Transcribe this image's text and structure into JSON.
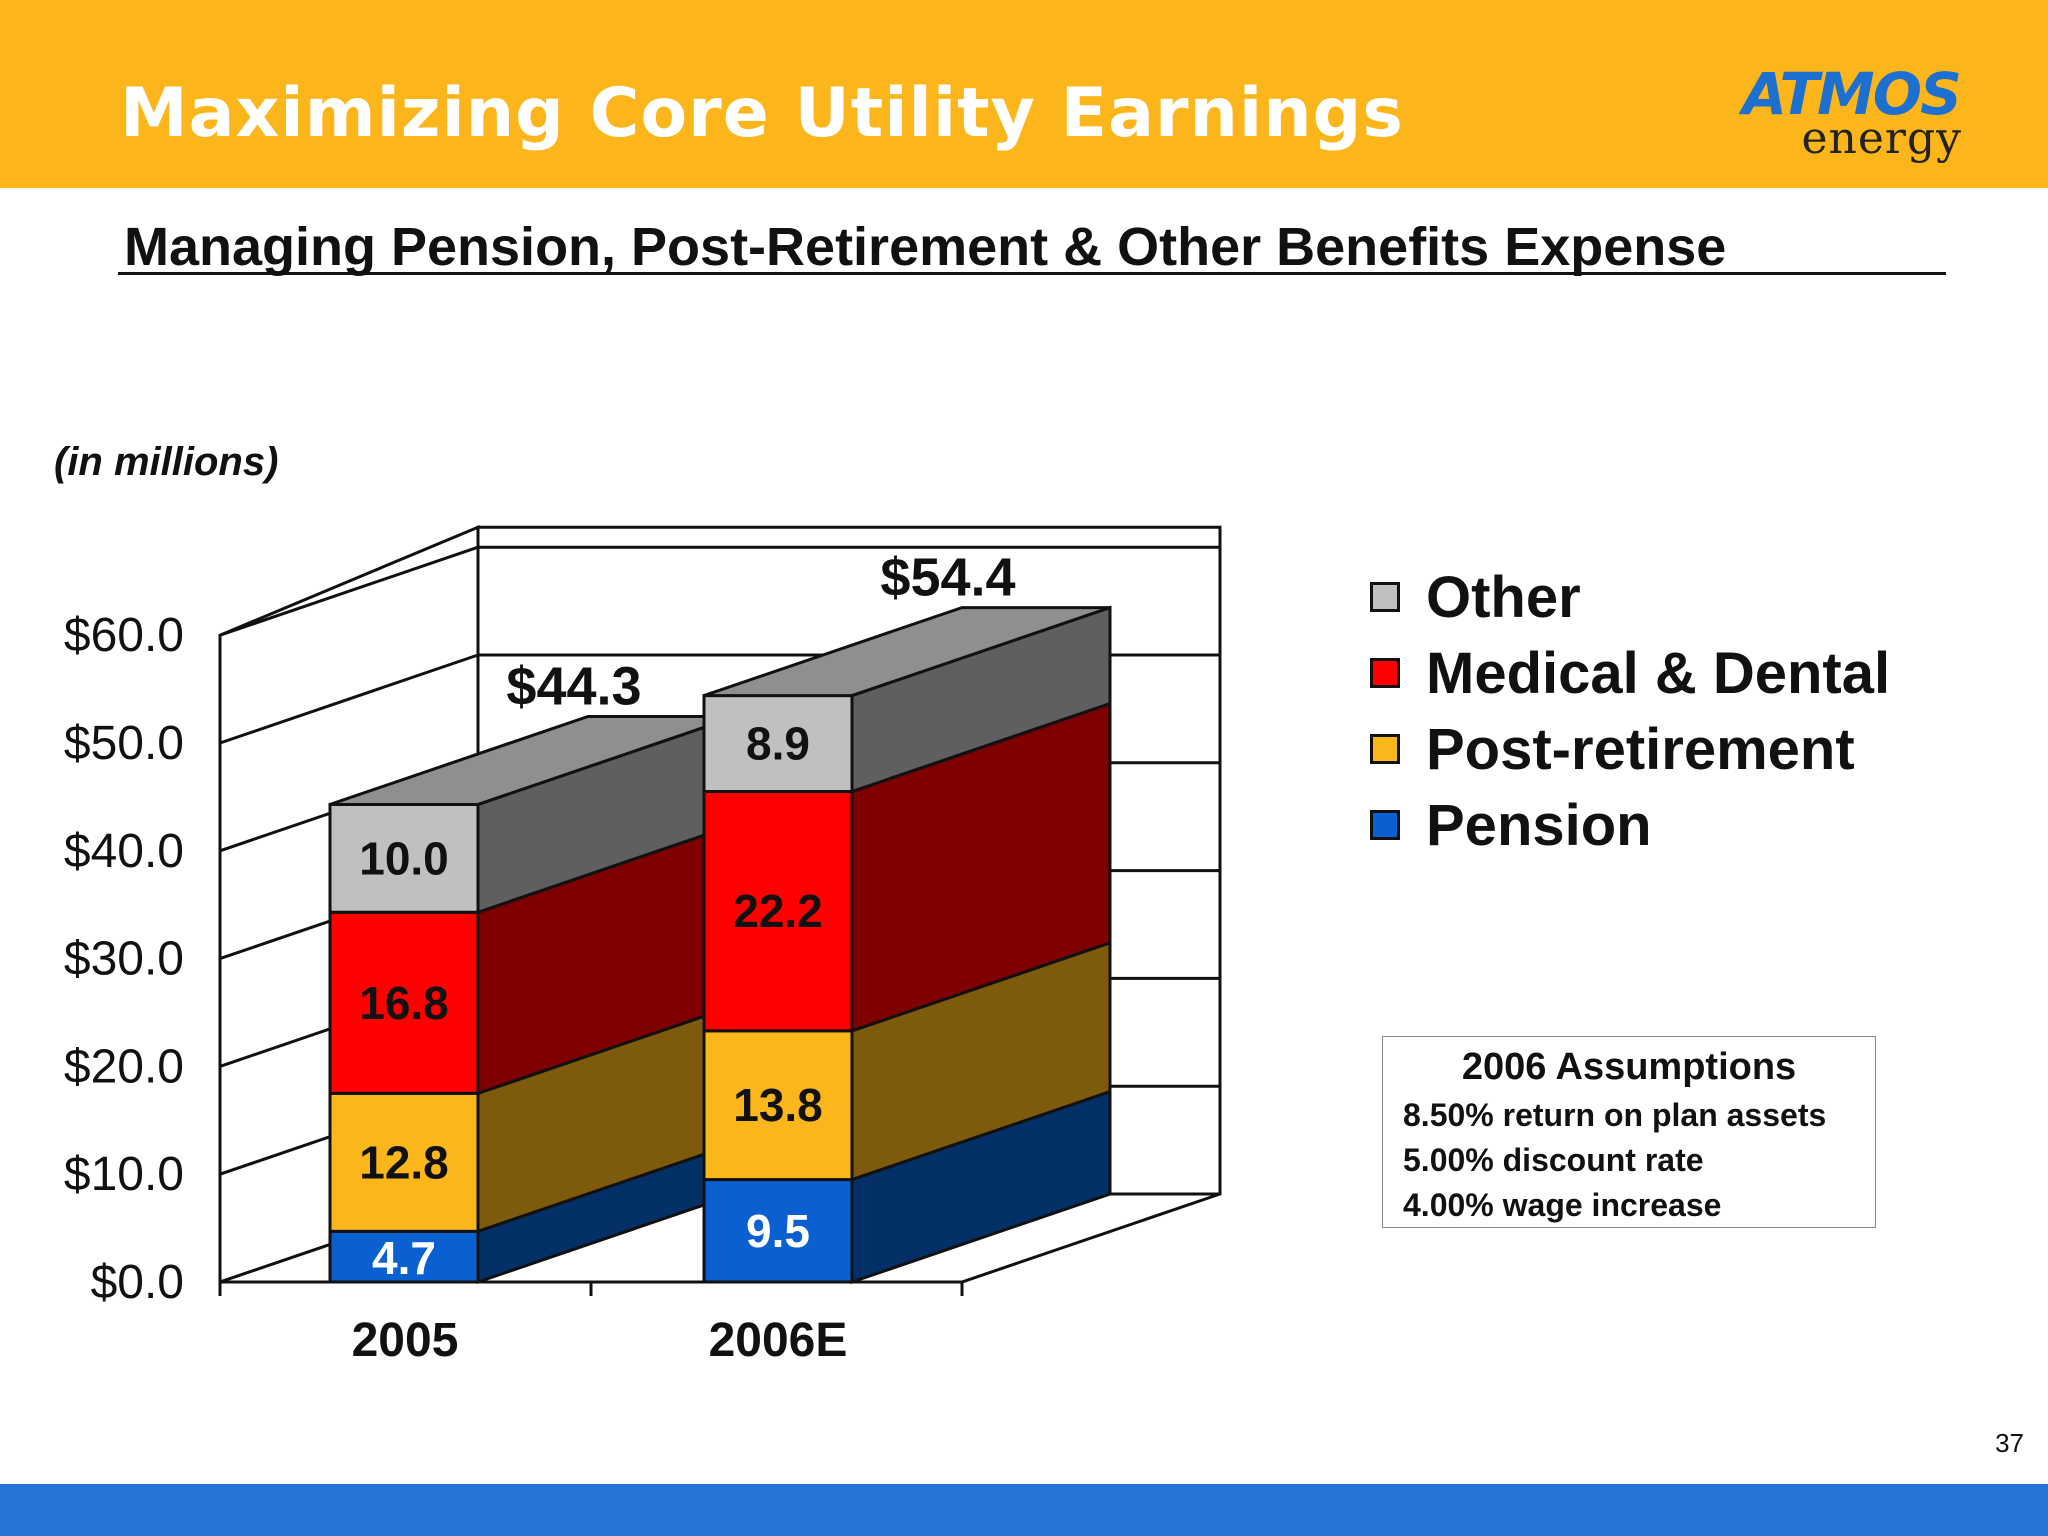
{
  "slide": {
    "title": "Maximizing Core Utility Earnings",
    "subtitle": "Managing Pension, Post-Retirement & Other Benefits Expense",
    "units_note": "(in millions)",
    "page_number": "37",
    "logo": {
      "main": "ATMOS",
      "sub": "energy"
    }
  },
  "colors": {
    "header": "#fcb61b",
    "footer": "#2674d6",
    "pension": "#0a5fd1",
    "post_retirement": "#fbb61b",
    "medical_dental": "#fe0000",
    "other": "#c0bfc2"
  },
  "chart_data": {
    "type": "bar",
    "stacked": true,
    "three_d": true,
    "categories": [
      "2005",
      "2006E"
    ],
    "series": [
      {
        "name": "Pension",
        "values": [
          4.7,
          9.5
        ],
        "labels": [
          "4.7",
          "9.5"
        ],
        "color": "#0a5fd1",
        "side_color": "#033066",
        "label_color": "#ffffff"
      },
      {
        "name": "Post-retirement",
        "values": [
          12.8,
          13.8
        ],
        "labels": [
          "12.8",
          "13.8"
        ],
        "color": "#fbb61b",
        "side_color": "#7e5a0c",
        "label_color": "#111111"
      },
      {
        "name": "Medical & Dental",
        "values": [
          16.8,
          22.2
        ],
        "labels": [
          "16.8",
          "22.2"
        ],
        "color": "#fe0000",
        "side_color": "#7f0000",
        "label_color": "#111111"
      },
      {
        "name": "Other",
        "values": [
          10.0,
          8.9
        ],
        "labels": [
          "10.0",
          "8.9"
        ],
        "color": "#c0bfc2",
        "side_color": "#5f5e61",
        "label_color": "#111111"
      }
    ],
    "totals": [
      "$44.3",
      "$54.4"
    ],
    "y_ticks": [
      "$0.0",
      "$10.0",
      "$20.0",
      "$30.0",
      "$40.0",
      "$50.0",
      "$60.0"
    ],
    "ylim": [
      0,
      60
    ],
    "grid": true,
    "legend_position": "right"
  },
  "legend": {
    "items": [
      {
        "label": "Other",
        "color": "#c0bfc2"
      },
      {
        "label": "Medical & Dental",
        "color": "#fe0000"
      },
      {
        "label": "Post-retirement",
        "color": "#fbb61b"
      },
      {
        "label": "Pension",
        "color": "#0a5fd1"
      }
    ]
  },
  "assumptions": {
    "title": "2006 Assumptions",
    "lines": [
      "8.50% return on plan assets",
      "5.00% discount rate",
      "4.00% wage increase"
    ]
  }
}
